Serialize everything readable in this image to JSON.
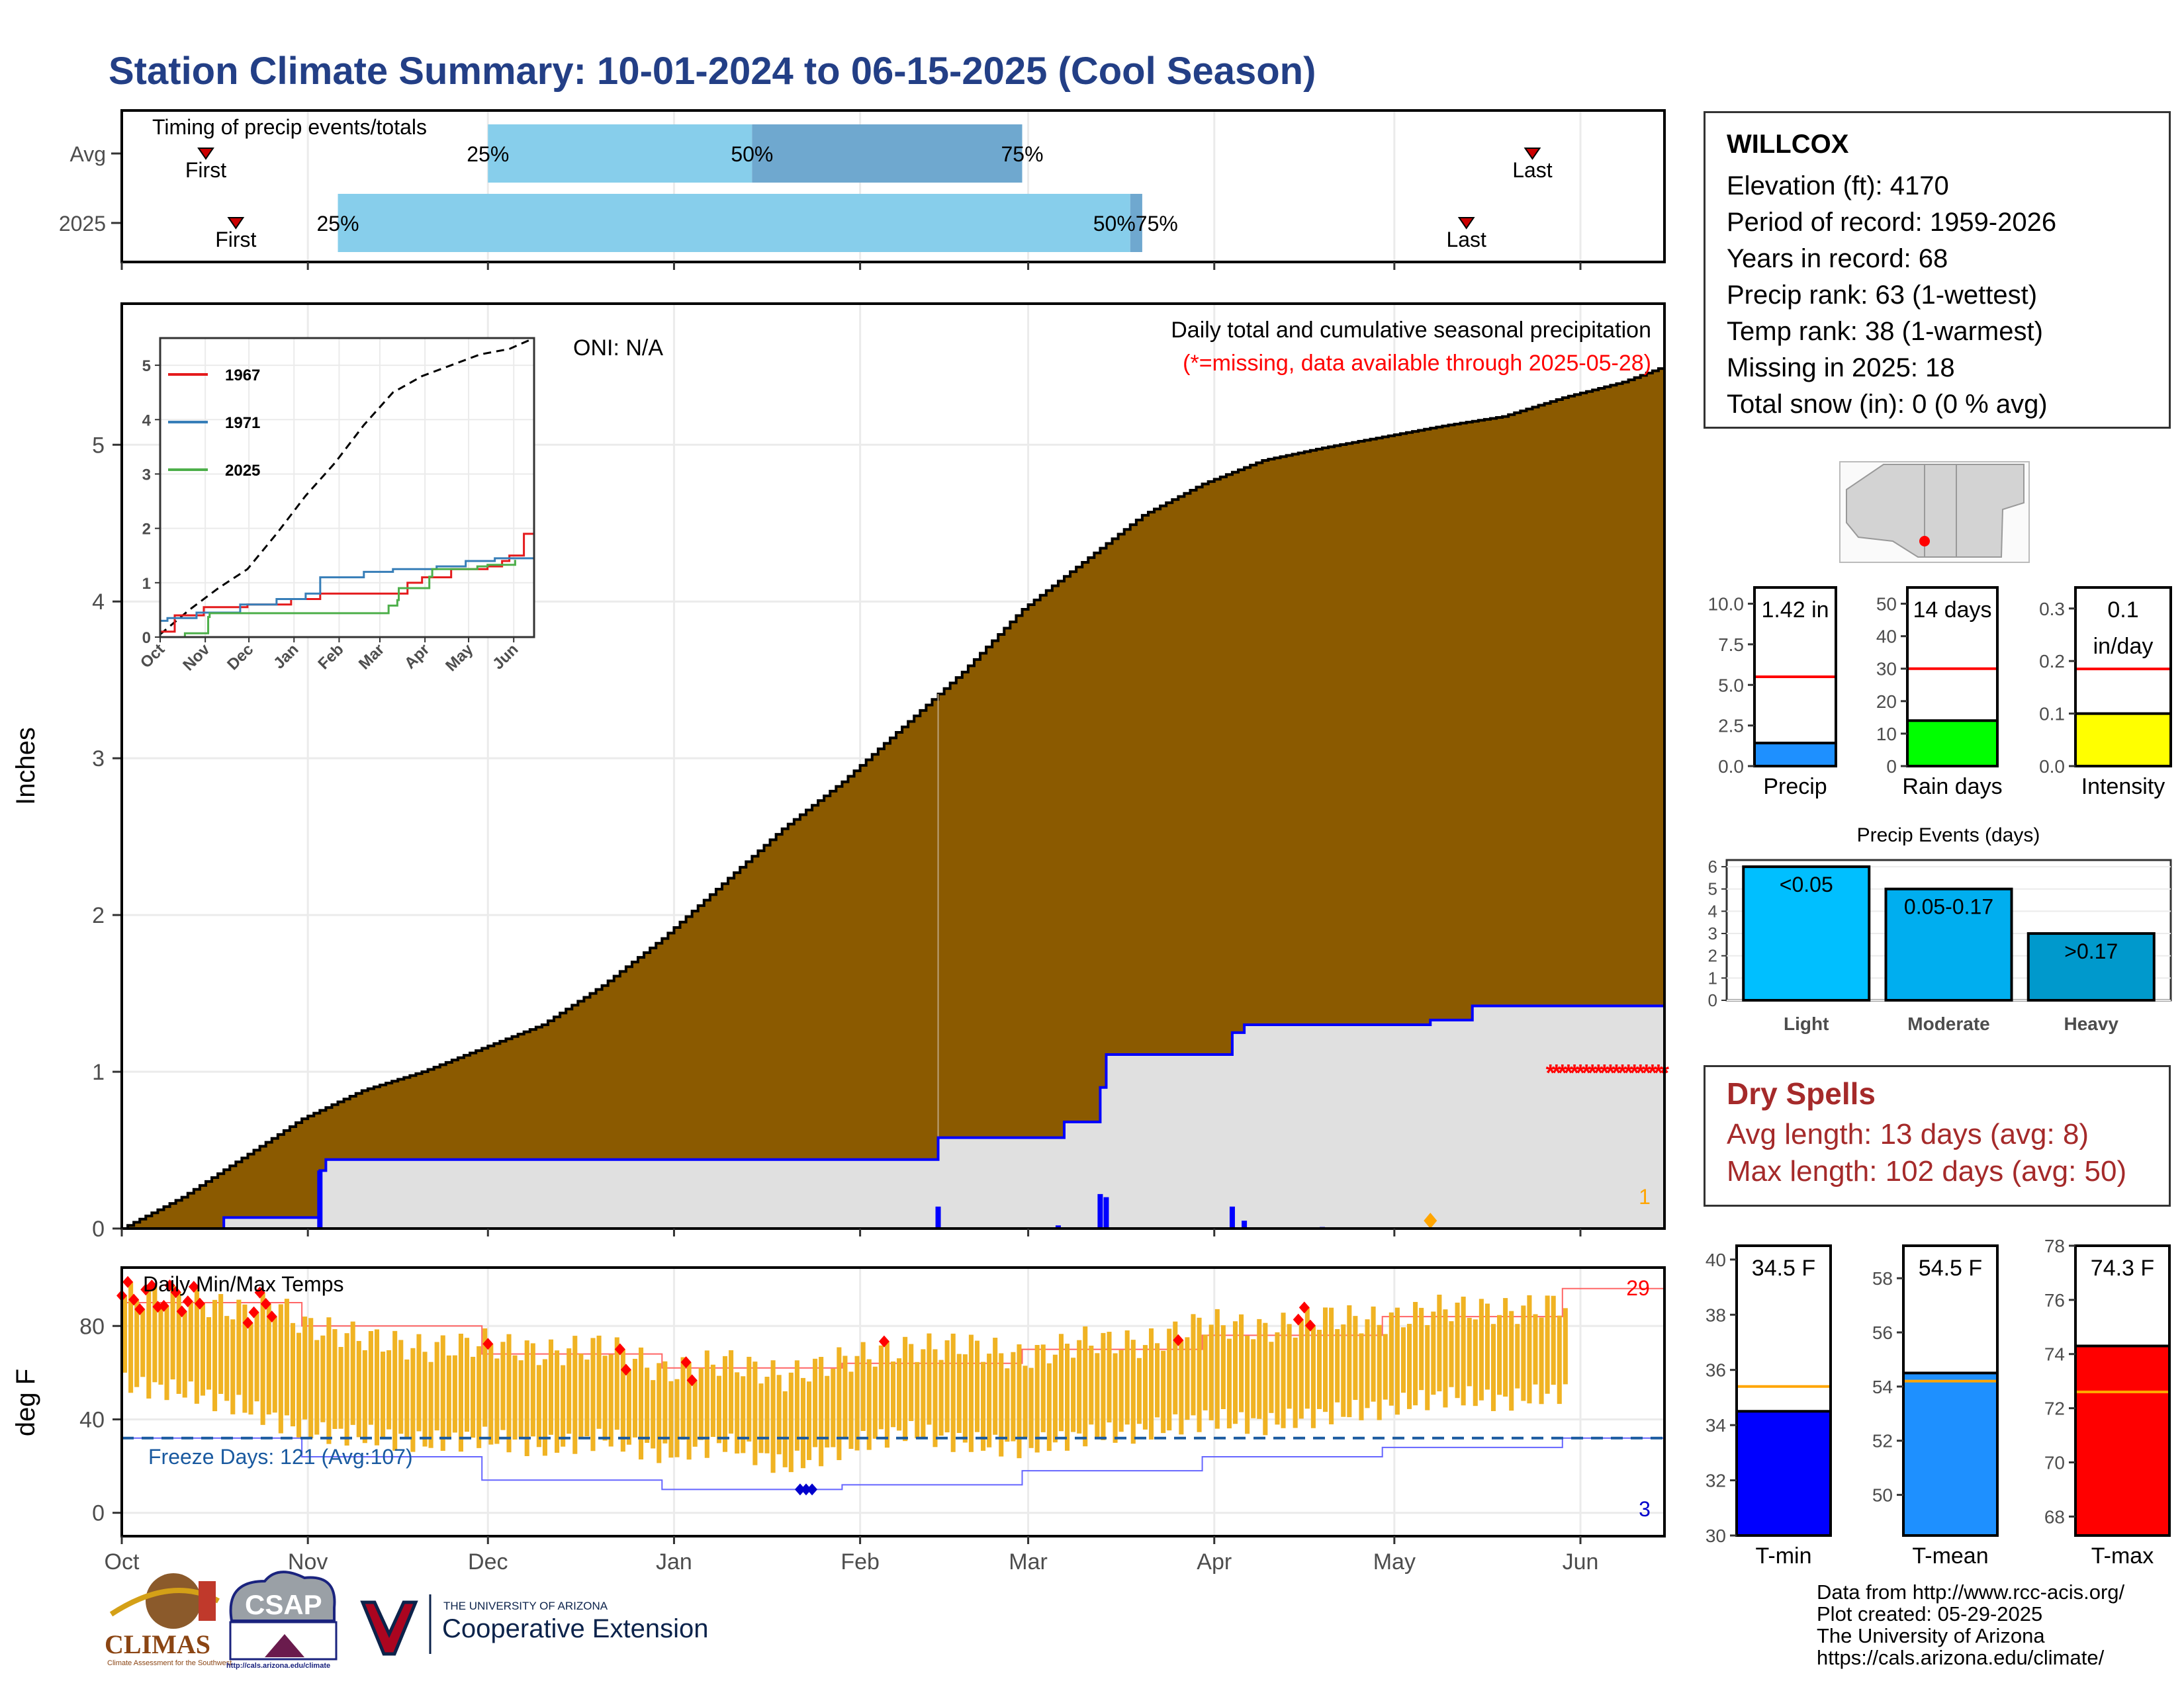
{
  "title": "Station Climate Summary: 10-01-2024 to 06-15-2025 (Cool Season)",
  "timing": {
    "label": "Timing of precip events/totals",
    "row_labels": [
      "Avg",
      "2025"
    ],
    "pct_labels": [
      "25%",
      "50%",
      "75%"
    ],
    "first_label": "First",
    "last_label": "Last",
    "avg": {
      "first_day": 14,
      "p25": 61,
      "p50": 105,
      "p75": 150,
      "last_day": 235
    },
    "y2025": {
      "first_day": 19,
      "p25": 36,
      "p50": 168,
      "p75": 170,
      "last_day": 224
    },
    "p50_75_label_2025": "50%75%"
  },
  "chart_data": [
    {
      "type": "area",
      "title": "Daily total and cumulative seasonal precipitation",
      "subtitle": "(*=missing, data available through 2025-05-28)",
      "annotation": "ONI: N/A",
      "ylabel": "Inches",
      "ylim": [
        0,
        5.9
      ],
      "yticks": [
        0,
        1,
        2,
        3,
        4,
        5
      ],
      "x_tick_labels": [
        "Oct",
        "Nov",
        "Dec",
        "Jan",
        "Feb",
        "Mar",
        "Apr",
        "May",
        "Jun"
      ],
      "x_tick_days": [
        0,
        31,
        61,
        92,
        123,
        151,
        182,
        212,
        243
      ],
      "x_range_days": [
        0,
        257
      ],
      "avg_cumulative": {
        "days": [
          0,
          10,
          20,
          30,
          40,
          50,
          60,
          70,
          80,
          90,
          100,
          110,
          120,
          130,
          140,
          150,
          160,
          170,
          180,
          190,
          200,
          210,
          220,
          230,
          240,
          250,
          257
        ],
        "values": [
          0,
          0.2,
          0.45,
          0.7,
          0.88,
          1.0,
          1.15,
          1.3,
          1.55,
          1.85,
          2.2,
          2.55,
          2.85,
          3.2,
          3.55,
          3.95,
          4.25,
          4.55,
          4.75,
          4.9,
          4.98,
          5.05,
          5.12,
          5.18,
          5.3,
          5.4,
          5.5
        ]
      },
      "season_2025_cumulative": {
        "days": [
          0,
          17,
          17,
          33,
          33,
          34,
          34,
          136,
          136,
          157,
          157,
          163,
          163,
          164,
          164,
          185,
          185,
          187,
          187,
          218,
          218,
          225,
          225,
          244,
          257
        ],
        "values": [
          0,
          0,
          0.07,
          0.07,
          0.37,
          0.37,
          0.44,
          0.44,
          0.58,
          0.58,
          0.68,
          0.68,
          0.9,
          0.9,
          1.11,
          1.11,
          1.25,
          1.25,
          1.3,
          1.3,
          1.33,
          1.33,
          1.42,
          1.42,
          1.42
        ]
      },
      "daily_bars": [
        [
          33,
          0.37
        ],
        [
          136,
          0.14
        ],
        [
          156,
          0.02
        ],
        [
          163,
          0.22
        ],
        [
          164,
          0.2
        ],
        [
          185,
          0.14
        ],
        [
          187,
          0.05
        ],
        [
          200,
          0.01
        ]
      ],
      "missing_marker": {
        "start_day": 238,
        "end_day": 257,
        "value": 1,
        "symbol": "*"
      },
      "orange_marker": {
        "day": 218,
        "value": 0.05
      },
      "orange_count": "1",
      "inset": {
        "ylim": [
          0,
          5.5
        ],
        "yticks": [
          0,
          1,
          2,
          3,
          4,
          5
        ],
        "x_tick_labels": [
          "Oct",
          "Nov",
          "Dec",
          "Jan",
          "Feb",
          "Mar",
          "Apr",
          "May",
          "Jun"
        ],
        "series": [
          {
            "name": "1967",
            "color": "#e41a1c",
            "days": [
              0,
              10,
              30,
              60,
              90,
              110,
              135,
              170,
              180,
              200,
              225,
              235,
              240,
              250,
              257
            ],
            "values": [
              0.1,
              0.4,
              0.55,
              0.6,
              0.7,
              0.8,
              0.8,
              1.0,
              1.1,
              1.25,
              1.3,
              1.4,
              1.5,
              1.9,
              1.9
            ]
          },
          {
            "name": "1971",
            "color": "#377eb8",
            "days": [
              0,
              5,
              25,
              55,
              80,
              100,
              110,
              140,
              160,
              190,
              210,
              230,
              245,
              257
            ],
            "values": [
              0.3,
              0.35,
              0.45,
              0.6,
              0.7,
              0.8,
              1.1,
              1.2,
              1.25,
              1.3,
              1.4,
              1.45,
              1.45,
              1.45
            ]
          },
          {
            "name": "2025",
            "color": "#4daf4a",
            "days": [
              0,
              17,
              33,
              34,
              136,
              157,
              163,
              164,
              185,
              187,
              218,
              225,
              244
            ],
            "values": [
              0,
              0.07,
              0.37,
              0.44,
              0.44,
              0.58,
              0.68,
              0.9,
              1.11,
              1.25,
              1.3,
              1.33,
              1.42
            ]
          }
        ],
        "avg_days": [
          0,
          20,
          40,
          60,
          80,
          100,
          120,
          140,
          160,
          180,
          200,
          220,
          240,
          257
        ],
        "avg_values": [
          0.05,
          0.5,
          0.9,
          1.25,
          1.9,
          2.6,
          3.2,
          3.9,
          4.5,
          4.8,
          5.0,
          5.2,
          5.3,
          5.5
        ]
      }
    },
    {
      "type": "bar",
      "title": "Daily Min/Max Temps",
      "ylabel": "deg F",
      "ylim": [
        -10,
        105
      ],
      "yticks": [
        0,
        40,
        80
      ],
      "freeze_label": "Freeze Days: 121 (Avg:107)",
      "freeze_line": 32,
      "record_high_count": "29",
      "record_low_count": "3",
      "x_tick_labels": [
        "Oct",
        "Nov",
        "Dec",
        "Jan",
        "Feb",
        "Mar",
        "Apr",
        "May",
        "Jun"
      ],
      "temps": {
        "high_days": [
          0,
          10,
          20,
          25,
          30,
          40,
          50,
          60,
          70,
          80,
          90,
          100,
          110,
          120,
          130,
          140,
          150,
          160,
          170,
          180,
          190,
          200,
          210,
          220,
          230,
          240
        ],
        "high_values": [
          93,
          92,
          86,
          90,
          80,
          75,
          70,
          73,
          68,
          72,
          60,
          65,
          58,
          66,
          70,
          72,
          66,
          74,
          72,
          82,
          78,
          84,
          82,
          88,
          86,
          90
        ],
        "low_values": [
          55,
          52,
          45,
          40,
          35,
          33,
          30,
          32,
          28,
          32,
          25,
          30,
          20,
          28,
          35,
          30,
          28,
          33,
          35,
          40,
          38,
          42,
          45,
          50,
          48,
          52
        ],
        "record_high_days": [
          0,
          1,
          2,
          3,
          4,
          5,
          6,
          7,
          8,
          9,
          10,
          11,
          12,
          13,
          21,
          22,
          23,
          24,
          25,
          61,
          83,
          84,
          94,
          95,
          127,
          176,
          196,
          197,
          198
        ],
        "record_low_days": [
          113,
          114,
          115
        ]
      },
      "norm_high": {
        "days": [
          0,
          30,
          60,
          90,
          120,
          150,
          180,
          210,
          240,
          257
        ],
        "values": [
          90,
          80,
          68,
          62,
          64,
          70,
          76,
          84,
          96,
          101
        ]
      },
      "norm_low": {
        "days": [
          0,
          30,
          60,
          90,
          120,
          150,
          180,
          210,
          240,
          257
        ],
        "values": [
          32,
          24,
          14,
          10,
          12,
          18,
          24,
          28,
          32,
          36
        ]
      }
    },
    {
      "type": "bar",
      "title": "Precip / Rain days / Intensity",
      "panels": [
        {
          "label": "Precip",
          "value_label": "1.42 in",
          "value": 1.42,
          "avg": 5.5,
          "ylim": [
            0,
            11
          ],
          "yticks": [
            "0.0",
            "2.5",
            "5.0",
            "7.5",
            "10.0"
          ],
          "ytick_values": [
            0,
            2.5,
            5,
            7.5,
            10
          ],
          "color": "#1e90ff"
        },
        {
          "label": "Rain days",
          "value_label": "14 days",
          "value": 14,
          "avg": 30,
          "ylim": [
            0,
            55
          ],
          "yticks": [
            "0",
            "10",
            "20",
            "30",
            "40",
            "50"
          ],
          "ytick_values": [
            0,
            10,
            20,
            30,
            40,
            50
          ],
          "color": "#00ff00"
        },
        {
          "label": "Intensity",
          "value_label": "0.1",
          "value_label2": "in/day",
          "value": 0.1,
          "avg": 0.185,
          "ylim": [
            0,
            0.34
          ],
          "yticks": [
            "0.0",
            "0.1",
            "0.2",
            "0.3"
          ],
          "ytick_values": [
            0,
            0.1,
            0.2,
            0.3
          ],
          "color": "#ffff00"
        }
      ]
    },
    {
      "type": "bar",
      "title": "Precip Events (days)",
      "categories": [
        "Light",
        "Moderate",
        "Heavy"
      ],
      "bar_labels": [
        "<0.05",
        "0.05-0.17",
        ">0.17"
      ],
      "values": [
        6,
        5,
        3
      ],
      "colors": [
        "#00bfff",
        "#00aeef",
        "#0099cc"
      ],
      "ylim": [
        0,
        6.3
      ],
      "yticks": [
        "0",
        "1",
        "2",
        "3",
        "4",
        "5",
        "6"
      ]
    },
    {
      "type": "bar",
      "title": "Temperature panels",
      "panels": [
        {
          "label": "T-min",
          "value_label": "34.5 F",
          "value": 34.5,
          "avg": 35.4,
          "ylim": [
            30,
            40.5
          ],
          "yticks": [
            "30",
            "32",
            "34",
            "36",
            "38",
            "40"
          ],
          "ytick_values": [
            30,
            32,
            34,
            36,
            38,
            40
          ],
          "color": "#0000ff"
        },
        {
          "label": "T-mean",
          "value_label": "54.5 F",
          "value": 54.5,
          "avg": 54.2,
          "ylim": [
            48.5,
            59.2
          ],
          "yticks": [
            "50",
            "52",
            "54",
            "56",
            "58"
          ],
          "ytick_values": [
            50,
            52,
            54,
            56,
            58
          ],
          "color": "#1e90ff"
        },
        {
          "label": "T-max",
          "value_label": "74.3 F",
          "value": 74.3,
          "avg": 72.6,
          "ylim": [
            67.3,
            78
          ],
          "yticks": [
            "68",
            "70",
            "72",
            "74",
            "76",
            "78"
          ],
          "ytick_values": [
            68,
            70,
            72,
            74,
            76,
            78
          ],
          "color": "#ff0000"
        }
      ]
    }
  ],
  "station": {
    "name": "WILLCOX",
    "lines": [
      "Elevation (ft): 4170",
      "Period of record: 1959-2026",
      "Years in record: 68",
      "Precip rank: 63 (1-wettest)",
      "Temp rank: 38 (1-warmest)",
      "Missing in 2025: 18",
      "Total snow (in): 0 (0 % avg)"
    ]
  },
  "dry_spells": {
    "title": "Dry Spells",
    "avg": "Avg length: 13 days (avg: 8)",
    "max": "Max length: 102 days (avg: 50)"
  },
  "credits": [
    "Data from http://www.rcc-acis.org/",
    "Plot created: 05-29-2025",
    "The University of Arizona",
    "https://cals.arizona.edu/climate/"
  ],
  "logos": {
    "climas": "CLIMAS",
    "climas_sub": "Climate Assessment for the Southwest",
    "csap": "CSAP",
    "csap_url": "http://cals.arizona.edu/climate",
    "ua_small": "THE UNIVERSITY OF ARIZONA",
    "ua_big": "Cooperative Extension"
  },
  "colors": {
    "title": "#233f86",
    "cumulative_fill": "#8b5a00",
    "season_fill": "#e0e0e0",
    "season_line": "#0000ff",
    "temp_bar": "#f0b323",
    "missing": "#ff0000",
    "dry_spells": "#a52a2a"
  }
}
